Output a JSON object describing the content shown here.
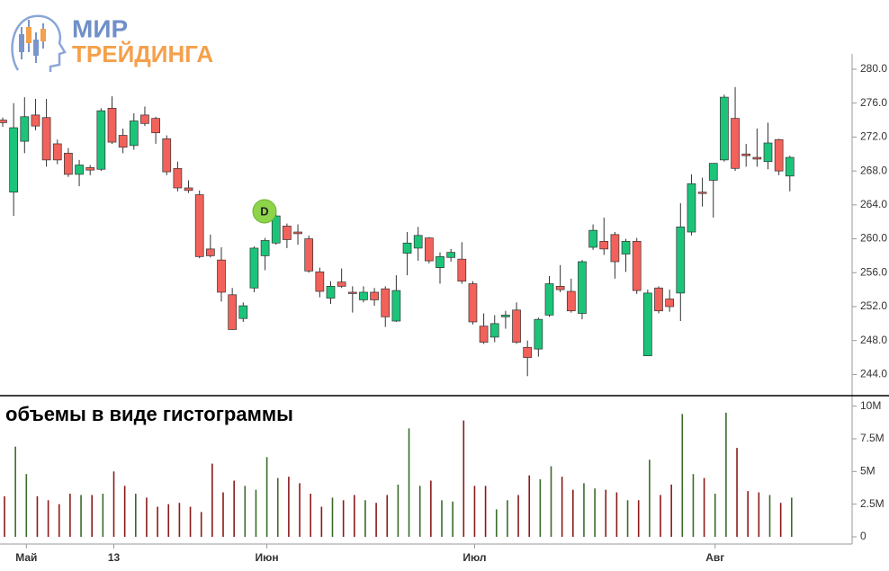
{
  "logo": {
    "line1": "МИР",
    "line2": "ТРЕЙДИНГА"
  },
  "chart_data": {
    "type": "candlestick",
    "annotation": "объемы в виде гистограммы",
    "marker": "D",
    "categories": [
      null,
      null,
      "Май",
      null,
      null,
      null,
      null,
      null,
      null,
      null,
      "13",
      null,
      null,
      null,
      null,
      null,
      null,
      null,
      null,
      null,
      null,
      null,
      null,
      null,
      "Июн",
      null,
      null,
      null,
      null,
      null,
      null,
      null,
      null,
      null,
      null,
      null,
      null,
      null,
      null,
      null,
      null,
      null,
      null,
      "Июл",
      null,
      null,
      null,
      null,
      null,
      null,
      null,
      null,
      null,
      null,
      null,
      null,
      null,
      null,
      null,
      null,
      null,
      null,
      null,
      null,
      null,
      "Авг",
      null,
      null,
      null,
      null,
      null,
      null,
      null
    ],
    "open": [
      274,
      265.5,
      271.5,
      274.6,
      274.3,
      271.2,
      270.1,
      267.6,
      268.4,
      268.2,
      275.4,
      272.2,
      271,
      274.6,
      274.2,
      271.8,
      268.3,
      266,
      265.2,
      258.8,
      257.5,
      253.4,
      250.6,
      254.2,
      258,
      259.5,
      261.5,
      260.8,
      260,
      256.1,
      253,
      254.9,
      253.7,
      252.8,
      253.7,
      254.1,
      250.3,
      258.3,
      258.9,
      260.1,
      256.6,
      257.8,
      257.6,
      254.7,
      249.7,
      248.4,
      250.8,
      251.6,
      247.2,
      247,
      251,
      254.4,
      253.8,
      251.2,
      259,
      259.7,
      260.5,
      258.2,
      259.7,
      246.2,
      254.2,
      252.9,
      253.6,
      260.8,
      265.5,
      266.9,
      269.3,
      274.2,
      270,
      269.6,
      269.1,
      271.7,
      267.4
    ],
    "high": [
      274.3,
      276,
      276.7,
      276.5,
      276.5,
      271.7,
      270.7,
      269.3,
      268.7,
      275.4,
      276.8,
      273,
      274.8,
      275.6,
      274.4,
      272.2,
      269.1,
      266.9,
      265.7,
      260.5,
      259,
      254.2,
      252.5,
      259.1,
      260.1,
      263,
      261.8,
      261.7,
      260.4,
      256.6,
      255,
      256.5,
      254.4,
      254.4,
      254.2,
      254.4,
      255.7,
      260.8,
      261.4,
      260.2,
      258.4,
      258.8,
      259.6,
      255,
      251.2,
      251,
      251.5,
      252.5,
      248,
      250.7,
      255.6,
      256.9,
      255.3,
      257.5,
      261.7,
      262.5,
      260.8,
      260,
      260.1,
      254,
      254.4,
      254,
      264.2,
      267.6,
      267.2,
      268.9,
      277,
      277.9,
      271.2,
      273,
      273.7,
      271.8,
      269.8
    ],
    "low": [
      273.2,
      262.7,
      270.1,
      272.8,
      268.5,
      268.8,
      267.3,
      266.2,
      267.5,
      268,
      271.2,
      270.1,
      270.5,
      273.3,
      271.2,
      267.5,
      265.6,
      265.4,
      257.7,
      257.8,
      252.6,
      249.3,
      250.2,
      253.7,
      256.3,
      259.3,
      258.9,
      259.3,
      256,
      253.1,
      252.3,
      254.2,
      251.3,
      252.5,
      252.1,
      249.6,
      250.2,
      255.7,
      257.4,
      257.1,
      254.7,
      257.3,
      254.7,
      249.9,
      247.6,
      247.8,
      249.4,
      247.6,
      243.8,
      246.1,
      250.8,
      253.7,
      251.3,
      250.5,
      258.7,
      258.1,
      255.3,
      256.1,
      253.5,
      246.2,
      251.2,
      251.4,
      250.3,
      260.4,
      263.8,
      262.5,
      269.1,
      268,
      268.5,
      268.5,
      268.2,
      267.5,
      265.6
    ],
    "close": [
      273.7,
      273.1,
      274.4,
      273.3,
      269.3,
      269.3,
      267.6,
      268.7,
      268.1,
      275.1,
      271.4,
      270.8,
      273.9,
      273.6,
      272.5,
      267.9,
      266,
      265.7,
      257.9,
      258,
      253.7,
      249.3,
      252.1,
      258.9,
      259.8,
      262.7,
      259.9,
      260.6,
      256.2,
      253.8,
      254.4,
      254.4,
      253.6,
      253.7,
      252.8,
      250.8,
      253.9,
      259.5,
      260.4,
      257.4,
      257.9,
      258.4,
      255,
      250.2,
      247.8,
      250,
      251,
      247.8,
      246,
      250.5,
      254.7,
      254,
      251.5,
      257.3,
      261,
      258.8,
      257.3,
      259.7,
      253.9,
      253.6,
      251.5,
      252,
      261.4,
      266.5,
      265.4,
      268.9,
      276.7,
      268.3,
      269.8,
      269.4,
      271.3,
      268,
      269.6
    ],
    "volume": [
      3.1,
      6.9,
      4.8,
      3.1,
      2.8,
      2.5,
      3.3,
      3.2,
      3.2,
      3.3,
      5,
      3.9,
      3.3,
      3,
      2.3,
      2.5,
      2.6,
      2.3,
      1.9,
      5.6,
      3.4,
      4.3,
      3.9,
      3.6,
      6.1,
      4.5,
      4.6,
      4.1,
      3.3,
      2.3,
      3,
      2.8,
      3.2,
      2.8,
      2.6,
      3.2,
      4,
      8.3,
      3.9,
      4.3,
      2.8,
      2.7,
      8.9,
      3.9,
      3.9,
      2.1,
      2.8,
      3.2,
      4.7,
      4.4,
      5.4,
      4.6,
      3.6,
      4.1,
      3.7,
      3.6,
      3.4,
      2.8,
      2.8,
      5.9,
      3.2,
      4,
      9.4,
      4.8,
      4.5,
      3.3,
      9.5,
      6.8,
      3.5,
      3.4,
      3.2,
      2.6,
      3
    ],
    "up_color": "#1cc47a",
    "down_color": "#f2615a",
    "volume_up_color": "#3a6b2a",
    "volume_down_color": "#8b1a1a",
    "ylim": [
      241.5,
      281.8
    ],
    "yticks": [
      {
        "value": 244,
        "label": "244.0"
      },
      {
        "value": 248,
        "label": "248.0"
      },
      {
        "value": 252,
        "label": "252.0"
      },
      {
        "value": 256,
        "label": "256.0"
      },
      {
        "value": 260,
        "label": "260.0"
      },
      {
        "value": 264,
        "label": "264.0"
      },
      {
        "value": 268,
        "label": "268.0"
      },
      {
        "value": 272,
        "label": "272.0"
      },
      {
        "value": 276,
        "label": "276.0"
      },
      {
        "value": 280,
        "label": "280.0"
      }
    ],
    "y2lim": [
      -0.55,
      10.8
    ],
    "y2ticks": [
      0,
      {
        "value": 2.5,
        "label": "2.5M"
      },
      {
        "value": 5,
        "label": "5M"
      },
      {
        "value": 7.5,
        "label": "7.5M"
      },
      {
        "value": 10,
        "label": "10M"
      }
    ]
  }
}
